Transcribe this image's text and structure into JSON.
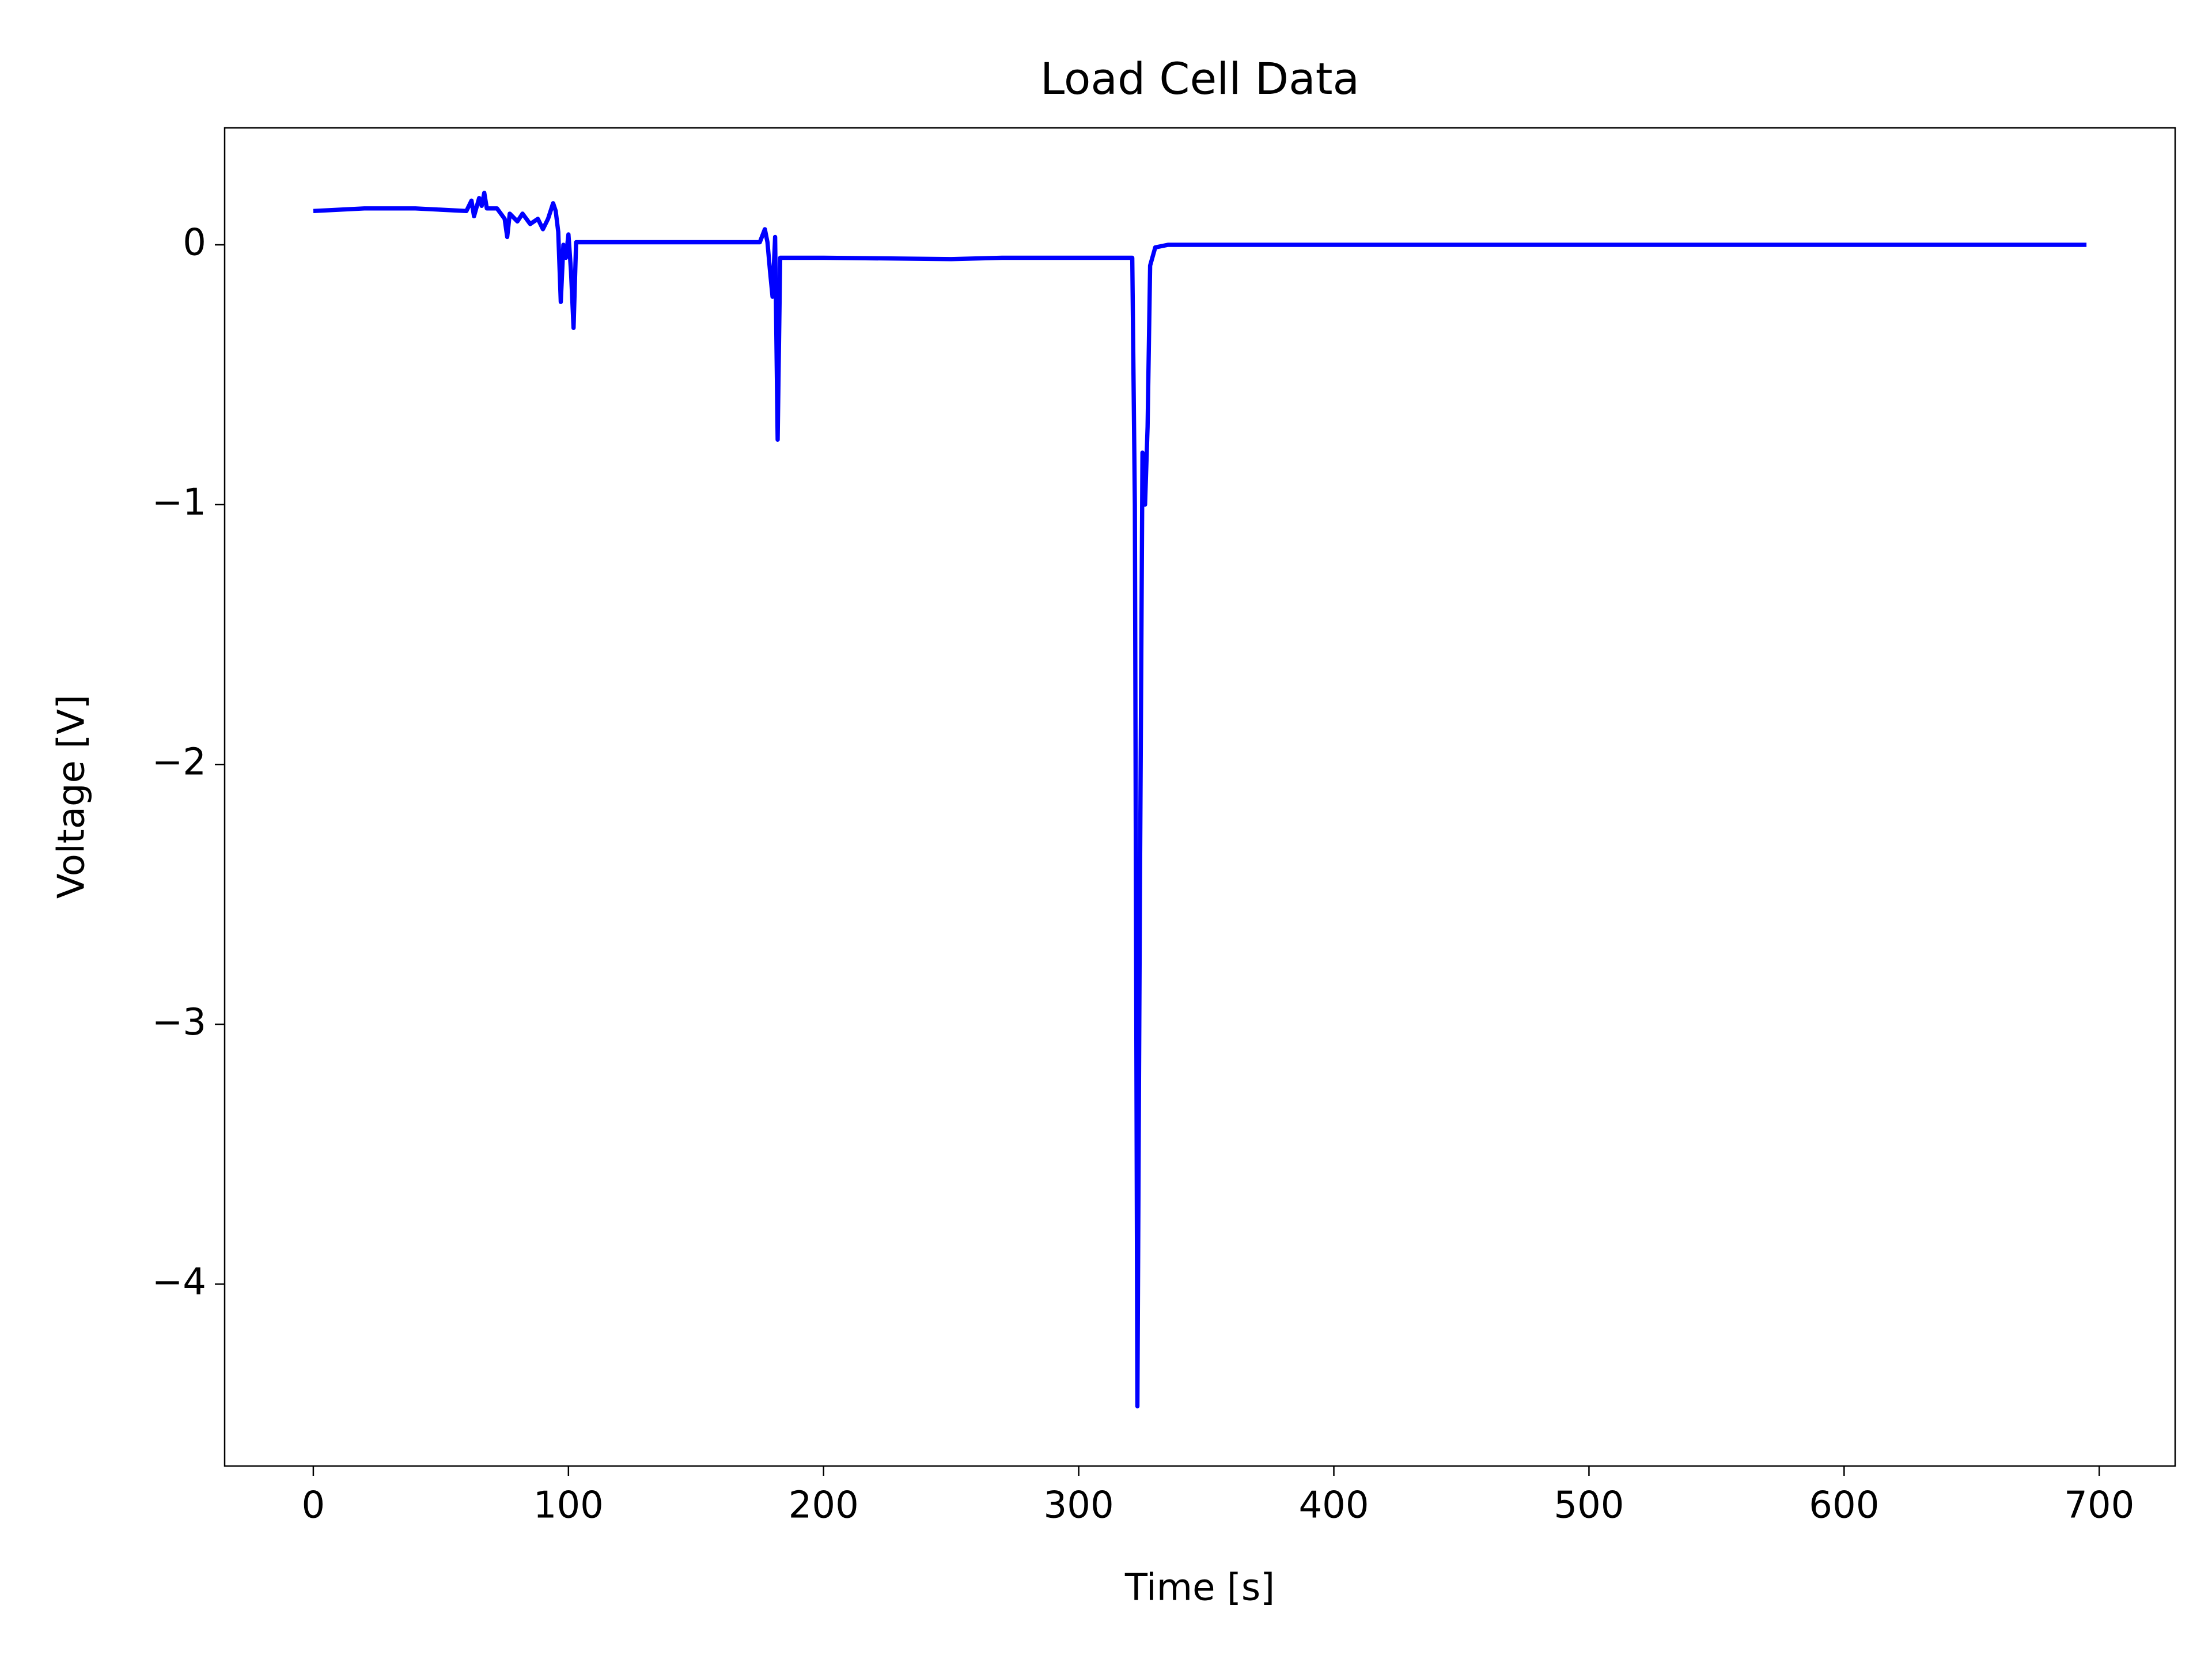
{
  "chart_data": {
    "type": "line",
    "title": "Load Cell Data",
    "x_label": "Time [s]",
    "y_label": "Voltage [V]",
    "x": [
      0,
      20,
      40,
      60,
      62,
      63,
      65,
      66,
      67,
      68,
      72,
      75,
      76,
      77,
      80,
      82,
      85,
      88,
      90,
      92,
      94,
      95,
      96,
      97,
      98,
      99,
      100,
      101,
      102,
      103,
      105,
      120,
      140,
      160,
      175,
      177,
      178,
      179,
      180,
      181,
      182,
      183,
      200,
      250,
      270,
      300,
      321,
      322,
      323,
      324,
      325,
      326,
      327,
      328,
      330,
      335,
      400,
      500,
      600,
      695
    ],
    "series": [
      {
        "name": "Voltage",
        "color": "#0000ff",
        "values": [
          0.13,
          0.14,
          0.14,
          0.13,
          0.17,
          0.11,
          0.18,
          0.15,
          0.2,
          0.14,
          0.14,
          0.1,
          0.03,
          0.12,
          0.09,
          0.12,
          0.08,
          0.1,
          0.06,
          0.1,
          0.16,
          0.13,
          0.05,
          -0.22,
          0.0,
          -0.05,
          0.04,
          -0.1,
          -0.32,
          0.01,
          0.01,
          0.01,
          0.01,
          0.01,
          0.01,
          0.06,
          0.01,
          -0.1,
          -0.2,
          0.03,
          -0.75,
          -0.05,
          -0.05,
          -0.055,
          -0.05,
          -0.05,
          -0.05,
          -1.0,
          -4.47,
          -2.5,
          -0.8,
          -1.0,
          -0.7,
          -0.08,
          -0.01,
          0.0,
          0.0,
          0.0,
          0.0,
          0.0
        ]
      }
    ],
    "xlim": [
      -34.75,
      729.75
    ],
    "ylim": [
      -4.7,
      0.45
    ],
    "xticks": [
      0,
      100,
      200,
      300,
      400,
      500,
      600,
      700
    ],
    "yticks": [
      {
        "value": -4,
        "label": "−4"
      },
      {
        "value": -3,
        "label": "−3"
      },
      {
        "value": -2,
        "label": "−2"
      },
      {
        "value": -1,
        "label": "−1"
      },
      0
    ],
    "grid": false
  }
}
